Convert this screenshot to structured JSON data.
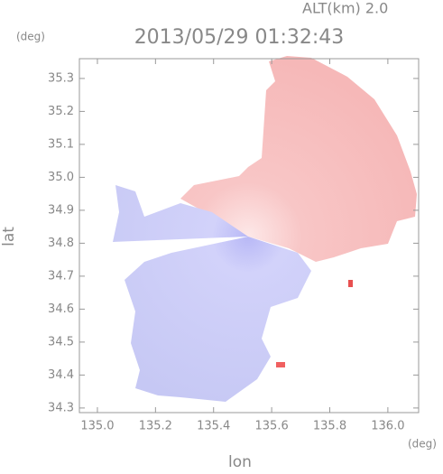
{
  "chart_data": {
    "type": "image",
    "title": "2013/05/29 01:32:43",
    "subtitle": "ALT(km) 2.0",
    "x_label": "lon",
    "y_label": "lat",
    "x_unit": "(deg)",
    "y_unit": "(deg)",
    "xlim": [
      134.938,
      136.106
    ],
    "ylim": [
      34.286,
      35.36
    ],
    "xticks": [
      {
        "value": 135.0,
        "label": "135.0"
      },
      135.2,
      135.4,
      135.6,
      135.8,
      {
        "value": 136.0,
        "label": "136.0"
      }
    ],
    "yticks": [
      35.3,
      35.2,
      35.1,
      {
        "value": 35.0,
        "label": "35.0"
      },
      34.9,
      34.8,
      34.7,
      34.6,
      34.5,
      34.4,
      34.3
    ],
    "axis_color": "#999999"
  }
}
